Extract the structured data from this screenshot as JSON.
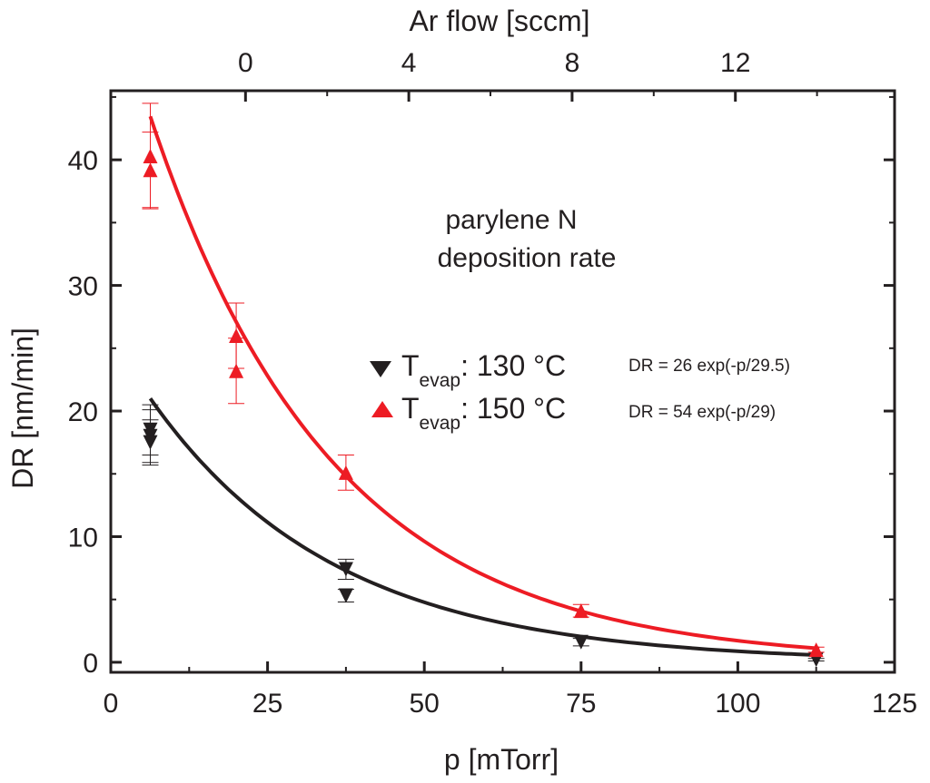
{
  "chart_data": {
    "type": "scatter",
    "xlabel": "p [mTorr]",
    "ylabel": "DR [nm/min]",
    "top_xlabel": "Ar flow [sccm]",
    "xlim": [
      0,
      125
    ],
    "ylim": [
      -0.8,
      45.5
    ],
    "top_xlim": [
      -3.3,
      15.9
    ],
    "x_ticks": [
      0,
      25,
      50,
      75,
      100,
      125
    ],
    "y_ticks": [
      0,
      10,
      20,
      30,
      40
    ],
    "top_x_ticks": [
      0,
      4,
      8,
      12
    ],
    "x_tick_labels": [
      "0",
      "25",
      "50",
      "75",
      "100",
      "125"
    ],
    "y_tick_labels": [
      "0",
      "10",
      "20",
      "30",
      "40"
    ],
    "top_x_tick_labels": [
      "0",
      "4",
      "8",
      "12"
    ],
    "grid": false,
    "annotation": {
      "line1": "parylene N",
      "line2": "deposition rate"
    },
    "legend_position": "center-right",
    "series": [
      {
        "name_main": "T",
        "name_sub": "evap",
        "name_temp": ": 130 °C",
        "fit_label": "DR = 26 exp(-p/29.5)",
        "color": "#231f20",
        "marker": "triangle-down",
        "fit": {
          "a": 26,
          "tau": 29.5,
          "x_start": 6.3,
          "x_end": 113
        },
        "points": [
          {
            "x": 6.3,
            "y": 18.5,
            "err": 2.0
          },
          {
            "x": 6.3,
            "y": 18.0,
            "err": 2.1
          },
          {
            "x": 6.3,
            "y": 17.5,
            "err": 1.8
          },
          {
            "x": 37.5,
            "y": 7.4,
            "err": 0.8
          },
          {
            "x": 37.5,
            "y": 5.3,
            "err": 0.5
          },
          {
            "x": 75,
            "y": 1.6,
            "err": 0.3
          },
          {
            "x": 112.5,
            "y": 0.2,
            "err": 0.1
          }
        ]
      },
      {
        "name_main": "T",
        "name_sub": "evap",
        "name_temp": ": 150 °C",
        "fit_label": "DR = 54 exp(-p/29)",
        "color": "#ed1c24",
        "marker": "triangle-up",
        "fit": {
          "a": 54,
          "tau": 29,
          "x_start": 6.3,
          "x_end": 113
        },
        "points": [
          {
            "x": 6.3,
            "y": 40.3,
            "err": 4.2
          },
          {
            "x": 6.3,
            "y": 39.2,
            "err": 3.0
          },
          {
            "x": 20,
            "y": 26.0,
            "err": 2.6
          },
          {
            "x": 20,
            "y": 23.2,
            "err": 2.6
          },
          {
            "x": 37.5,
            "y": 15.1,
            "err": 1.4
          },
          {
            "x": 75,
            "y": 4.1,
            "err": 0.5
          },
          {
            "x": 112.5,
            "y": 1.0,
            "err": 0.2
          }
        ]
      }
    ]
  }
}
